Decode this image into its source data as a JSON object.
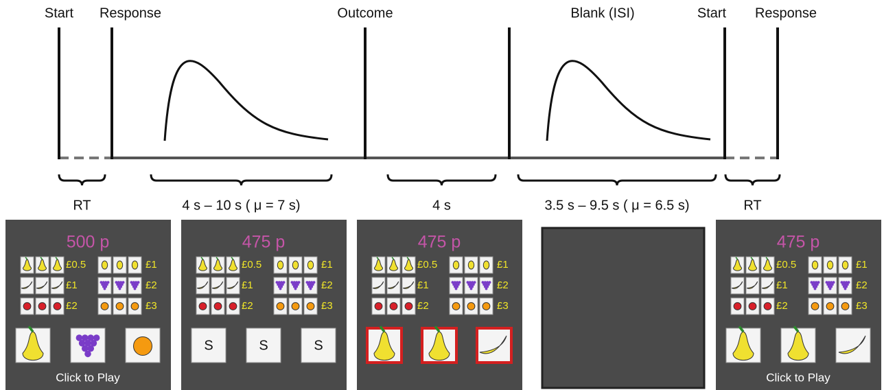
{
  "timeline": {
    "events": [
      "Start",
      "Response",
      "Outcome",
      "Blank (ISI)",
      "Start",
      "Response"
    ],
    "intervals": [
      "RT",
      "4 s – 10 s ( μ = 7 s)",
      "4 s",
      "3.5 s – 9.5 s ( μ = 6.5 s)",
      "RT"
    ]
  },
  "paytable": {
    "left": [
      "£0.5",
      "£1",
      "£2"
    ],
    "right": [
      "£1",
      "£2",
      "£3"
    ]
  },
  "panels": [
    {
      "balance": "500 p",
      "footer": "Click to Play"
    },
    {
      "balance": "475 p",
      "reels": [
        "S",
        "S",
        "S"
      ]
    },
    {
      "balance": "475 p"
    },
    {
      "balance": "475 p",
      "footer": "Click to Play"
    }
  ]
}
